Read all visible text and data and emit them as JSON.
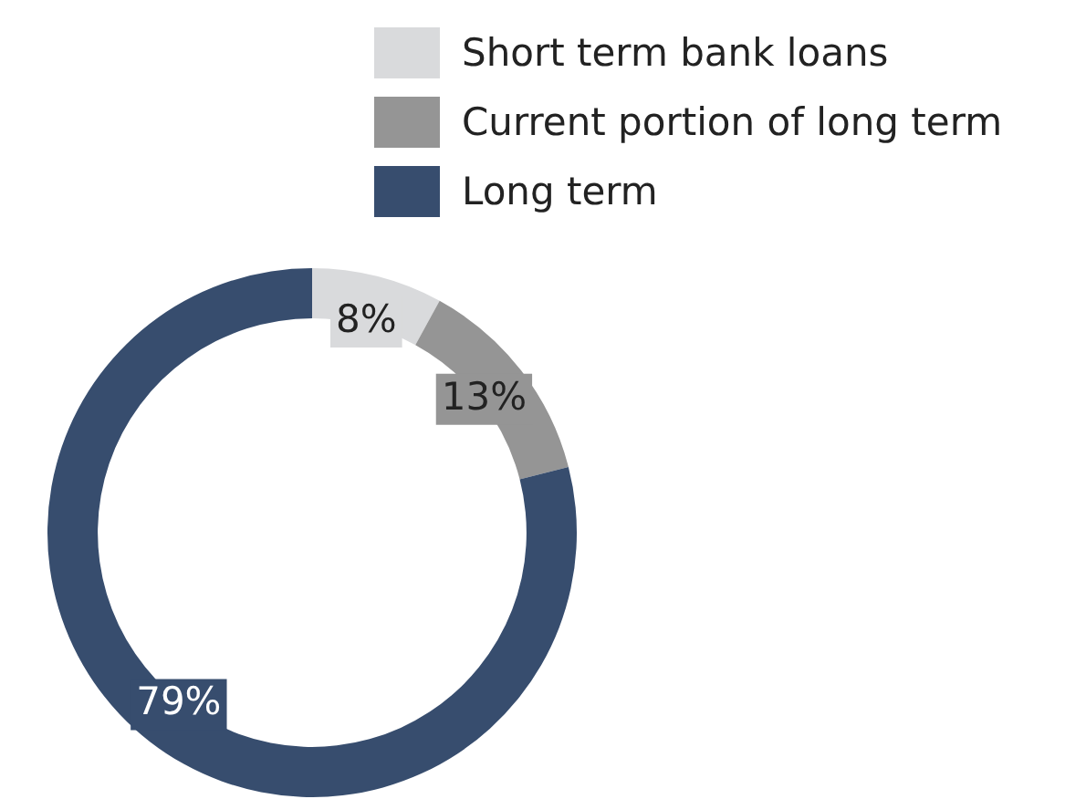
{
  "chart_data": {
    "type": "donut",
    "categories": [
      "Short term bank loans",
      "Current portion of long term",
      "Long term"
    ],
    "values": [
      8,
      13,
      79
    ],
    "colors": [
      "#d9dadc",
      "#959595",
      "#374d6e"
    ],
    "value_labels": [
      "8%",
      "13%",
      "79%"
    ],
    "legend": "top right"
  }
}
